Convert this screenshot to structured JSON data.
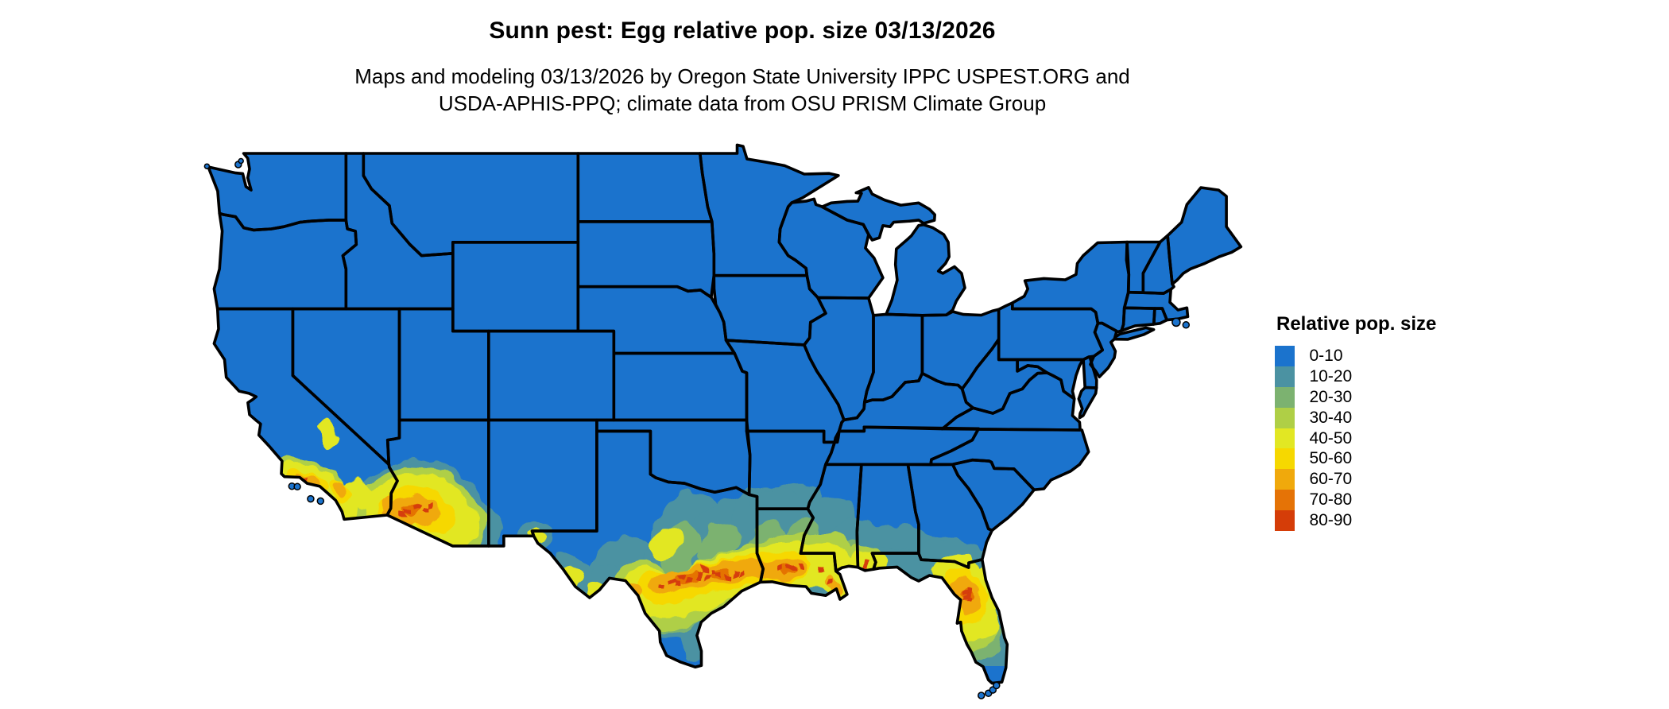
{
  "header": {
    "title": "Sunn pest: Egg relative pop. size 03/13/2026",
    "subtitle_line1": "Maps and modeling 03/13/2026 by Oregon State University IPPC USPEST.ORG and",
    "subtitle_line2": "USDA-APHIS-PPQ; climate data from OSU PRISM Climate Group"
  },
  "legend": {
    "title": "Relative pop. size",
    "items": [
      {
        "label": "0-10",
        "color": "#1b73cd"
      },
      {
        "label": "10-20",
        "color": "#4b92a2"
      },
      {
        "label": "20-30",
        "color": "#7cb270"
      },
      {
        "label": "30-40",
        "color": "#afcf46"
      },
      {
        "label": "40-50",
        "color": "#e2e723"
      },
      {
        "label": "50-60",
        "color": "#f6d800"
      },
      {
        "label": "60-70",
        "color": "#f0a90c"
      },
      {
        "label": "70-80",
        "color": "#e57306"
      },
      {
        "label": "80-90",
        "color": "#d53d08"
      }
    ]
  },
  "map": {
    "kind": "usa-conus-choropleth",
    "border_color": "#000000",
    "base_value_class": "0-10",
    "hotspot_regions": [
      {
        "area": "Southern Arizona",
        "max_class": "80-90"
      },
      {
        "area": "Southern California coast",
        "max_class": "70-80"
      },
      {
        "area": "South-central Texas Gulf band",
        "max_class": "80-90"
      },
      {
        "area": "Southern Louisiana coast",
        "max_class": "80-90"
      },
      {
        "area": "North-central Florida",
        "max_class": "80-90"
      }
    ]
  }
}
